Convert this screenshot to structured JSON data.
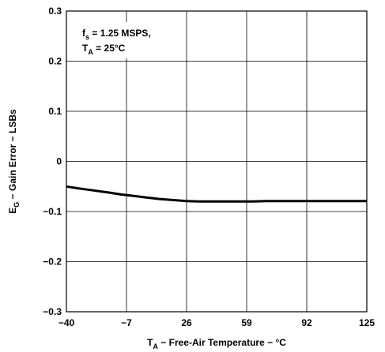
{
  "chart_data": {
    "type": "line",
    "title": "",
    "x": [
      -40,
      -33,
      -25,
      -17,
      -10,
      -3,
      4,
      11,
      18,
      26,
      33,
      40,
      48,
      55,
      62,
      70,
      77,
      84,
      92,
      99,
      106,
      114,
      121,
      125
    ],
    "series": [
      {
        "name": "",
        "color": "#000000",
        "values": [
          -0.05,
          -0.054,
          -0.058,
          -0.062,
          -0.066,
          -0.069,
          -0.072,
          -0.075,
          -0.077,
          -0.079,
          -0.08,
          -0.08,
          -0.08,
          -0.08,
          -0.08,
          -0.079,
          -0.079,
          -0.079,
          -0.079,
          -0.079,
          -0.079,
          -0.079,
          -0.079,
          -0.079
        ]
      }
    ],
    "xlim": [
      -40,
      125
    ],
    "ylim": [
      -0.3,
      0.3
    ],
    "xticks": [
      "-40",
      "-7",
      "26",
      "59",
      "92",
      "125"
    ],
    "yticks": [
      "0.3",
      "0.2",
      "0.1",
      "0",
      "-0.1",
      "-0.2",
      "-0.3"
    ],
    "xticks_display": [
      "−40",
      "−7",
      "26",
      "59",
      "92",
      "125"
    ],
    "yticks_display": [
      "0.3",
      "0.2",
      "0.1",
      "0",
      "−0.1",
      "−0.2",
      "−0.3"
    ],
    "xlabel": {
      "symbol": "T",
      "subscript": "A",
      "rest": " − Free-Air Temperature − °C"
    },
    "ylabel": {
      "symbol": "E",
      "subscript": "G",
      "rest": " − Gain Error − LSBs"
    },
    "grid": true,
    "legend": "none",
    "annotations": [
      {
        "symbol": "f",
        "subscript": "s",
        "rest": " = 1.25 MSPS,"
      },
      {
        "symbol": "T",
        "subscript": "A",
        "rest": " = 25°C"
      }
    ]
  }
}
